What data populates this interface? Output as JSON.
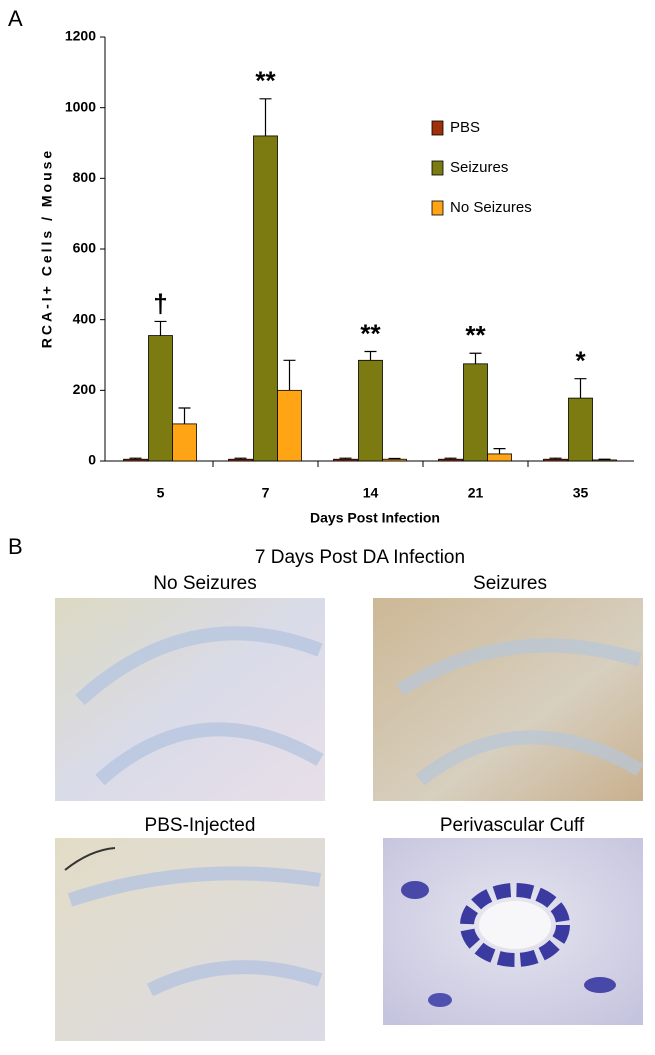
{
  "chart_data": {
    "type": "bar",
    "panel_label": "A",
    "y_label": "RCA-I+ Cells / Mouse",
    "x_label": "Days Post Infection",
    "categories": [
      "5",
      "7",
      "14",
      "21",
      "35"
    ],
    "series": [
      {
        "name": "PBS",
        "color": "#a0300c",
        "values": [
          5,
          5,
          5,
          5,
          5
        ],
        "errors": [
          3,
          3,
          3,
          3,
          3
        ]
      },
      {
        "name": "Seizures",
        "color": "#7b7b12",
        "values": [
          355,
          920,
          285,
          275,
          178
        ],
        "errors": [
          40,
          105,
          25,
          30,
          55
        ]
      },
      {
        "name": "No Seizures",
        "color": "#ffa414",
        "values": [
          105,
          200,
          5,
          20,
          3
        ],
        "errors": [
          45,
          85,
          2,
          15,
          2
        ]
      }
    ],
    "annotations": [
      "†",
      "**",
      "**",
      "**",
      "*"
    ],
    "ylim": [
      0,
      1200
    ],
    "yticks": [
      0,
      200,
      400,
      600,
      800,
      1000,
      1200
    ],
    "grid": false
  },
  "panel_b": {
    "panel_label": "B",
    "title": "7 Days Post DA Infection",
    "images": [
      "No Seizures",
      "Seizures",
      "PBS-Injected",
      "Perivascular Cuff"
    ]
  }
}
